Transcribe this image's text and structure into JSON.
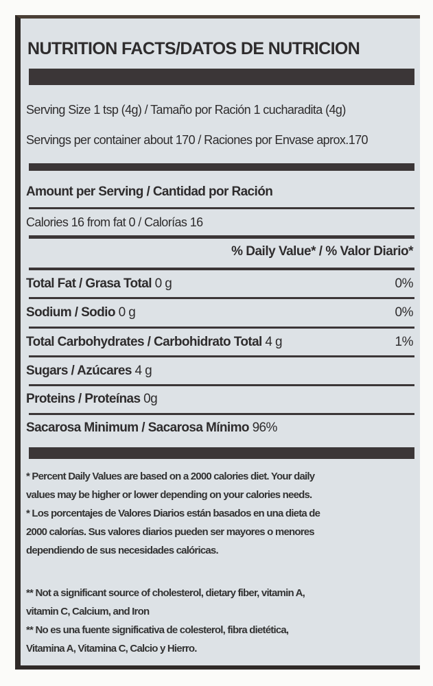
{
  "title": "NUTRITION FACTS/DATOS DE NUTRICION",
  "serving_size": "Serving Size 1 tsp (4g) / Tamaño por Ración 1 cucharadita (4g)",
  "servings_per_container": "Servings per container about 170 / Raciones por Envase aprox.170",
  "amount_per_serving": "Amount per Serving / Cantidad por Ración",
  "calories": "Calories 16  from fat 0 / Calorías 16",
  "daily_value_header": "% Daily Value* / % Valor Diario*",
  "nutrients": [
    {
      "label": "Total Fat / Grasa Total",
      "amount": "0 g",
      "dv": "0%"
    },
    {
      "label": "Sodium / Sodio",
      "amount": "0 g",
      "dv": "0%"
    },
    {
      "label": "Total Carbohydrates / Carbohidrato Total",
      "amount": "4 g",
      "dv": "1%"
    },
    {
      "label": "Sugars / Azúcares",
      "amount": "4 g",
      "dv": ""
    },
    {
      "label": "Proteins / Proteínas",
      "amount": "0g",
      "dv": ""
    },
    {
      "label": "Sacarosa Minimum / Sacarosa Mínimo",
      "amount": "96%",
      "dv": ""
    }
  ],
  "footnotes": [
    "* Percent Daily Values are based on a 2000 calories diet.  Your daily",
    "values may be higher or lower depending on your calories needs.",
    "* Los porcentajes de Valores Diarios están basados en una dieta de",
    "2000 calorías. Sus valores diarios pueden ser mayores o menores",
    "dependiendo de sus necesidades calóricas.",
    "** Not a significant source of cholesterol, dietary fiber, vitamin A,",
    "vitamin C, Calcium, and Iron",
    "** No es una fuente significativa de colesterol, fibra dietética,",
    "Vitamina A, Vitamina C, Calcio y Hierro."
  ]
}
